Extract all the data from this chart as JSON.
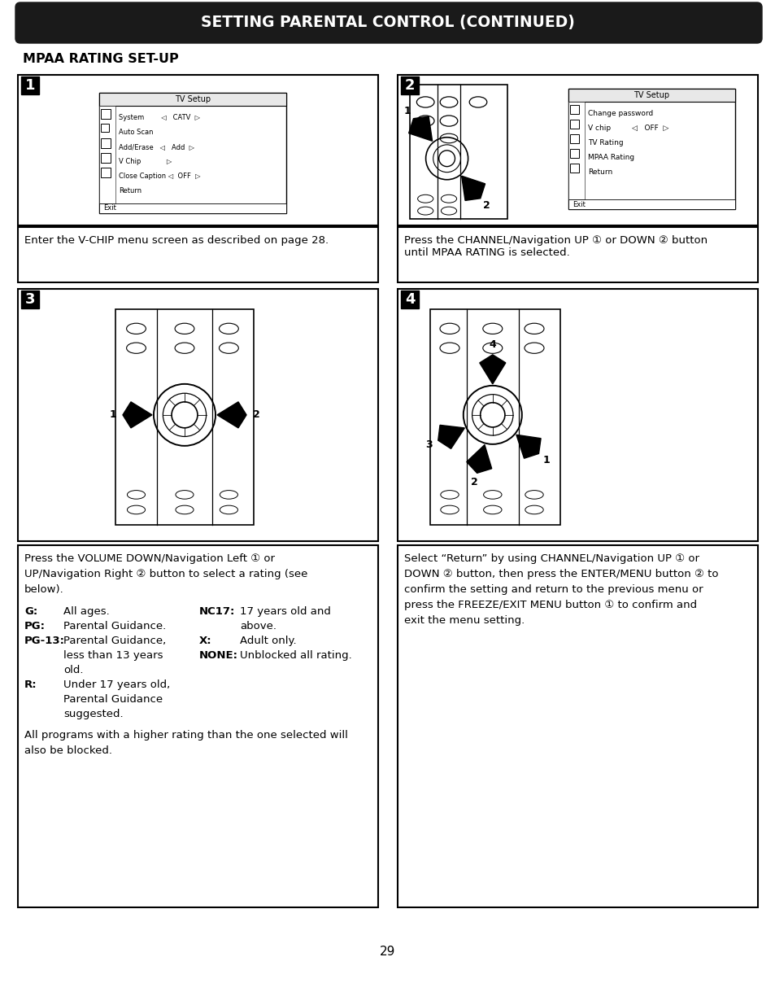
{
  "title": "SETTING PARENTAL CONTROL (CONTINUED)",
  "subtitle": "MPAA RATING SET-UP",
  "page_number": "29",
  "background_color": "#ffffff",
  "title_bg_color": "#1a1a1a",
  "title_text_color": "#ffffff",
  "text_color": "#000000",
  "caption1": "Enter the V-CHIP menu screen as described on page 28.",
  "caption2": "Press the CHANNEL/Navigation UP ① or DOWN ② button\nuntil MPAA RATING is selected.",
  "caption3_lines": [
    "Press the VOLUME DOWN/Navigation Left ① or",
    "UP/Navigation Right ② button to select a rating (see",
    "below)."
  ],
  "caption3_footer": "All programs with a higher rating than the one selected will\nalso be blocked.",
  "caption4": "Select “Return” by using CHANNEL/Navigation UP ① or\nDOWN ② button, then press the ENTER/MENU button ② to\nconfirm the setting and return to the previous menu or\npress the FREEZE/EXIT MENU button ① to confirm and\nexit the menu setting.",
  "menu1_title": "TV Setup",
  "menu1_items": [
    "System        ◁   CATV  ▷",
    "Auto Scan",
    "Add/Erase   ◁   Add  ▷",
    "V Chip            ▷",
    "Close Caption ◁  OFF  ▷",
    "Return"
  ],
  "menu1_footer": "Exit",
  "menu2_title": "TV Setup",
  "menu2_items": [
    "Change password",
    "V chip         ◁   OFF  ▷",
    "TV Rating",
    "MPAA Rating",
    "Return"
  ],
  "menu2_footer": "Exit",
  "rating_rows": [
    [
      "G:",
      "All ages.",
      "NC17:",
      "17 years old and"
    ],
    [
      "PG:",
      "Parental Guidance.",
      "",
      "above."
    ],
    [
      "PG-13:",
      "Parental Guidance,",
      "X:",
      "Adult only."
    ],
    [
      "",
      "less than 13 years",
      "NONE:",
      "Unblocked all rating."
    ],
    [
      "",
      "old.",
      "",
      ""
    ],
    [
      "R:",
      "Under 17 years old,",
      "",
      ""
    ],
    [
      "",
      "Parental Guidance",
      "",
      ""
    ],
    [
      "",
      "suggested.",
      "",
      ""
    ]
  ]
}
